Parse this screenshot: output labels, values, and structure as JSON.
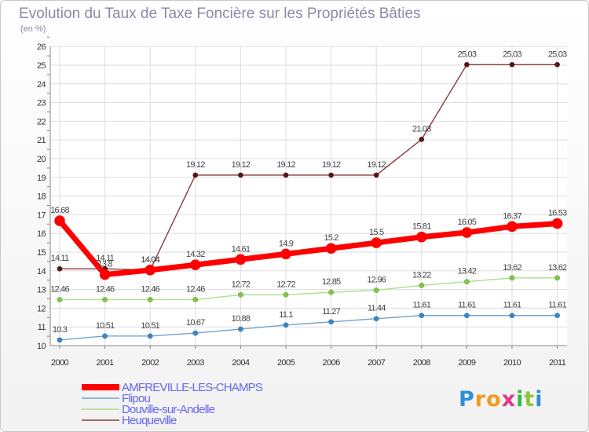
{
  "chart_data": {
    "type": "line",
    "title": "Evolution du Taux de Taxe Foncière sur les Propriétés Bâties",
    "subtitle": "(en %)",
    "x": [
      "2000",
      "2001",
      "2002",
      "2003",
      "2004",
      "2005",
      "2006",
      "2007",
      "2008",
      "2009",
      "2010",
      "2011"
    ],
    "ylim": [
      10,
      26
    ],
    "yticks": [
      10,
      11,
      12,
      13,
      14,
      15,
      16,
      17,
      18,
      19,
      20,
      21,
      22,
      23,
      24,
      25,
      26
    ],
    "grid": true,
    "series": [
      {
        "name": "Heuqueville",
        "color": "#8b3a3a",
        "marker": "#5a1414",
        "values": [
          14.11,
          14.11,
          14.04,
          19.12,
          19.12,
          19.12,
          19.12,
          19.12,
          21.03,
          25.03,
          25.03,
          25.03
        ],
        "labels": [
          "14.11",
          "14.11",
          "14.04",
          "19.12",
          "19.12",
          "19.12",
          "19.12",
          "19.12",
          "21.03",
          "25.03",
          "25.03",
          "25.03"
        ]
      },
      {
        "name": "Douville-sur-Andelle",
        "color": "#a8e08a",
        "marker": "#7ac943",
        "values": [
          12.46,
          12.46,
          12.46,
          12.46,
          12.72,
          12.72,
          12.85,
          12.96,
          13.22,
          13.42,
          13.62,
          13.62
        ],
        "labels": [
          "12.46",
          "12.46",
          "12.46",
          "12.46",
          "12.72",
          "12.72",
          "12.85",
          "12.96",
          "13.22",
          "13.42",
          "13.62",
          "13.62"
        ]
      },
      {
        "name": "Flipou",
        "color": "#6fa3d2",
        "marker": "#3a87c8",
        "values": [
          10.3,
          10.51,
          10.51,
          10.67,
          10.88,
          11.1,
          11.27,
          11.44,
          11.61,
          11.61,
          11.61,
          11.61
        ],
        "labels": [
          "10.3",
          "10.51",
          "10.51",
          "10.67",
          "10.88",
          "11.1",
          "11.27",
          "11.44",
          "11.61",
          "11.61",
          "11.61",
          "11.61"
        ]
      },
      {
        "name": "AMFREVILLE-LES-CHAMPS",
        "color": "#ff0000",
        "marker": "#ff0000",
        "values": [
          16.68,
          13.8,
          14.04,
          14.32,
          14.61,
          14.9,
          15.2,
          15.5,
          15.81,
          16.05,
          16.37,
          16.53
        ],
        "labels": [
          "16.68",
          "13.8",
          "14.04",
          "14.32",
          "14.61",
          "14.9",
          "15.2",
          "15.5",
          "15.81",
          "16.05",
          "16.37",
          "16.53"
        ]
      }
    ],
    "legend": {
      "placement": "bottom-left",
      "order": [
        "AMFREVILLE-LES-CHAMPS",
        "Flipou",
        "Douville-sur-Andelle",
        "Heuqueville"
      ],
      "text_color": "#6666ee"
    }
  },
  "logo": {
    "text": "Proxiti"
  }
}
